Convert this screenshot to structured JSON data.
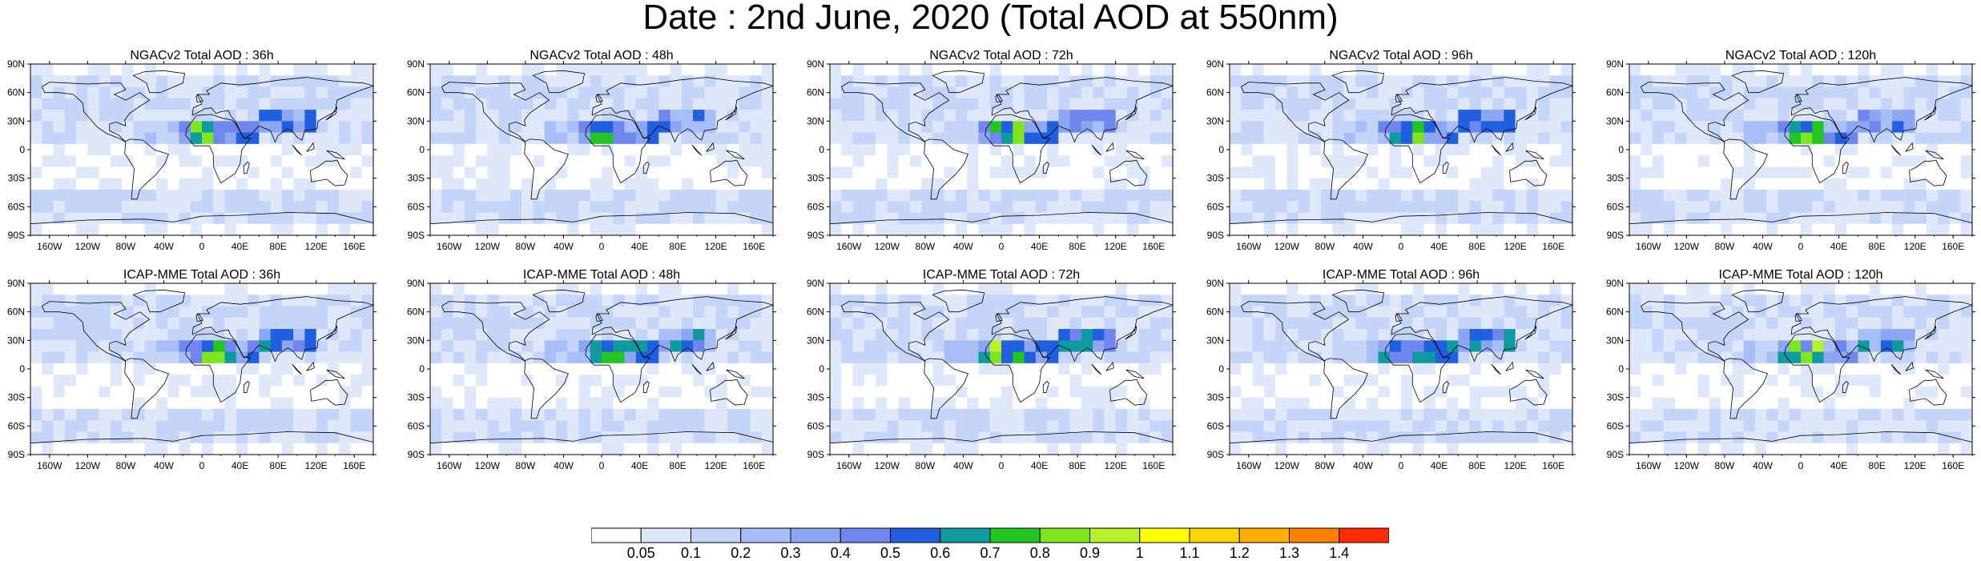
{
  "title": "Date : 2nd June, 2020 (Total AOD at 550nm)",
  "panels": [
    {
      "title": "NGACv2 Total AOD : 36h",
      "model": "NGACv2",
      "lead": "36h"
    },
    {
      "title": "NGACv2 Total AOD : 48h",
      "model": "NGACv2",
      "lead": "48h"
    },
    {
      "title": "NGACv2 Total AOD : 72h",
      "model": "NGACv2",
      "lead": "72h"
    },
    {
      "title": "NGACv2 Total AOD : 96h",
      "model": "NGACv2",
      "lead": "96h"
    },
    {
      "title": "NGACv2 Total AOD : 120h",
      "model": "NGACv2",
      "lead": "120h"
    },
    {
      "title": "ICAP-MME Total AOD : 36h",
      "model": "ICAP-MME",
      "lead": "36h"
    },
    {
      "title": "ICAP-MME Total AOD : 48h",
      "model": "ICAP-MME",
      "lead": "48h"
    },
    {
      "title": "ICAP-MME Total AOD : 72h",
      "model": "ICAP-MME",
      "lead": "72h"
    },
    {
      "title": "ICAP-MME Total AOD : 96h",
      "model": "ICAP-MME",
      "lead": "96h"
    },
    {
      "title": "ICAP-MME Total AOD : 120h",
      "model": "ICAP-MME",
      "lead": "120h"
    }
  ],
  "lat_ticks": [
    "90N",
    "60N",
    "30N",
    "0",
    "30S",
    "60S",
    "90S"
  ],
  "lat_values": [
    90,
    60,
    30,
    0,
    -30,
    -60,
    -90
  ],
  "lon_ticks": [
    "160W",
    "120W",
    "80W",
    "40W",
    "0",
    "40E",
    "80E",
    "120E",
    "160E"
  ],
  "lon_values": [
    -160,
    -120,
    -80,
    -40,
    0,
    40,
    80,
    120,
    160
  ],
  "colorbar": {
    "labels": [
      "0.05",
      "0.1",
      "0.2",
      "0.3",
      "0.4",
      "0.5",
      "0.6",
      "0.7",
      "0.8",
      "0.9",
      "1",
      "1.1",
      "1.2",
      "1.3",
      "1.4"
    ],
    "colors": [
      "#ffffff",
      "#dfe8fb",
      "#c5d5f9",
      "#a8bef6",
      "#8ca6f3",
      "#6f86ef",
      "#1f5fe0",
      "#0f9aa0",
      "#22c522",
      "#7fe51e",
      "#b8f02a",
      "#ffff00",
      "#ffd400",
      "#ffae00",
      "#ff7f00",
      "#ff2a00"
    ]
  },
  "colors": {
    "ocean_base": "#dfe8fb",
    "band_light": "#c5d5f9",
    "band_mid": "#a8bef6",
    "band_dark": "#8ca6f3",
    "coast": "#000000"
  }
}
